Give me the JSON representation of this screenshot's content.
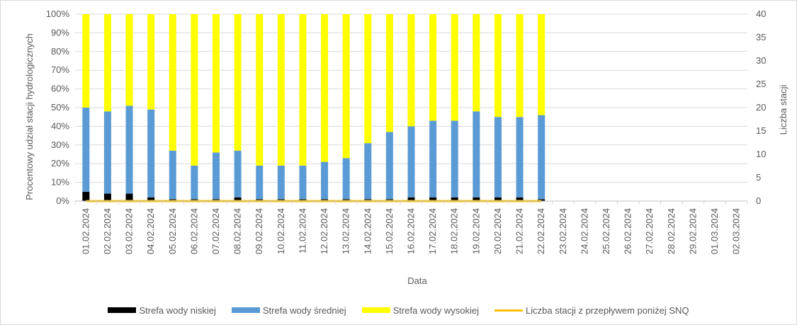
{
  "chart_data": {
    "type": "bar",
    "stacked": true,
    "xlabel": "Data",
    "ylabel_left": "Procentowy udział stacji hydrologicznych",
    "ylabel_right": "Liczba stacji",
    "ylim_left": [
      0,
      100
    ],
    "ylim_right": [
      0,
      40
    ],
    "y_ticks_left": [
      "0%",
      "10%",
      "20%",
      "30%",
      "40%",
      "50%",
      "60%",
      "70%",
      "80%",
      "90%",
      "100%"
    ],
    "y_ticks_right": [
      "0",
      "5",
      "10",
      "15",
      "20",
      "25",
      "30",
      "35",
      "40"
    ],
    "grid": true,
    "legend_position": "bottom",
    "categories": [
      "01.02.2024",
      "02.02.2024",
      "03.02.2024",
      "04.02.2024",
      "05.02.2024",
      "06.02.2024",
      "07.02.2024",
      "08.02.2024",
      "09.02.2024",
      "10.02.2024",
      "11.02.2024",
      "12.02.2024",
      "13.02.2024",
      "14.02.2024",
      "15.02.2024",
      "16.02.2024",
      "17.02.2024",
      "18.02.2024",
      "19.02.2024",
      "20.02.2024",
      "21.02.2024",
      "22.02.2024",
      "23.02.2024",
      "24.02.2024",
      "25.02.2024",
      "26.02.2024",
      "27.02.2024",
      "28.02.2024",
      "29.02.2024",
      "01.03.2024",
      "02.03.2024"
    ],
    "series": [
      {
        "name": "Strefa wody niskiej",
        "color": "#000000",
        "axis": "left",
        "values": [
          5,
          4,
          4,
          2,
          1,
          1,
          1,
          2,
          1,
          1,
          1,
          1,
          1,
          1,
          1,
          2,
          2,
          2,
          2,
          2,
          2,
          1,
          null,
          null,
          null,
          null,
          null,
          null,
          null,
          null,
          null
        ]
      },
      {
        "name": "Strefa wody średniej",
        "color": "#5b9bd5",
        "axis": "left",
        "values": [
          45,
          44,
          47,
          47,
          26,
          18,
          25,
          25,
          18,
          18,
          18,
          20,
          22,
          30,
          36,
          38,
          41,
          41,
          46,
          43,
          43,
          45,
          null,
          null,
          null,
          null,
          null,
          null,
          null,
          null,
          null
        ]
      },
      {
        "name": "Strefa wody wysokiej",
        "color": "#ffff00",
        "axis": "left",
        "values": [
          50,
          52,
          49,
          51,
          73,
          81,
          74,
          73,
          81,
          81,
          81,
          79,
          77,
          69,
          63,
          60,
          57,
          57,
          52,
          55,
          55,
          54,
          null,
          null,
          null,
          null,
          null,
          null,
          null,
          null,
          null
        ]
      },
      {
        "name": "Liczba stacji z przepływem poniżej SNQ",
        "color": "#ffc000",
        "axis": "right",
        "type": "line",
        "values": [
          0,
          0,
          0,
          0,
          0,
          0,
          0,
          0,
          0,
          0,
          0,
          0,
          0,
          0,
          0,
          0,
          0,
          0,
          0,
          0,
          0,
          0,
          null,
          null,
          null,
          null,
          null,
          null,
          null,
          null,
          null
        ]
      }
    ]
  }
}
